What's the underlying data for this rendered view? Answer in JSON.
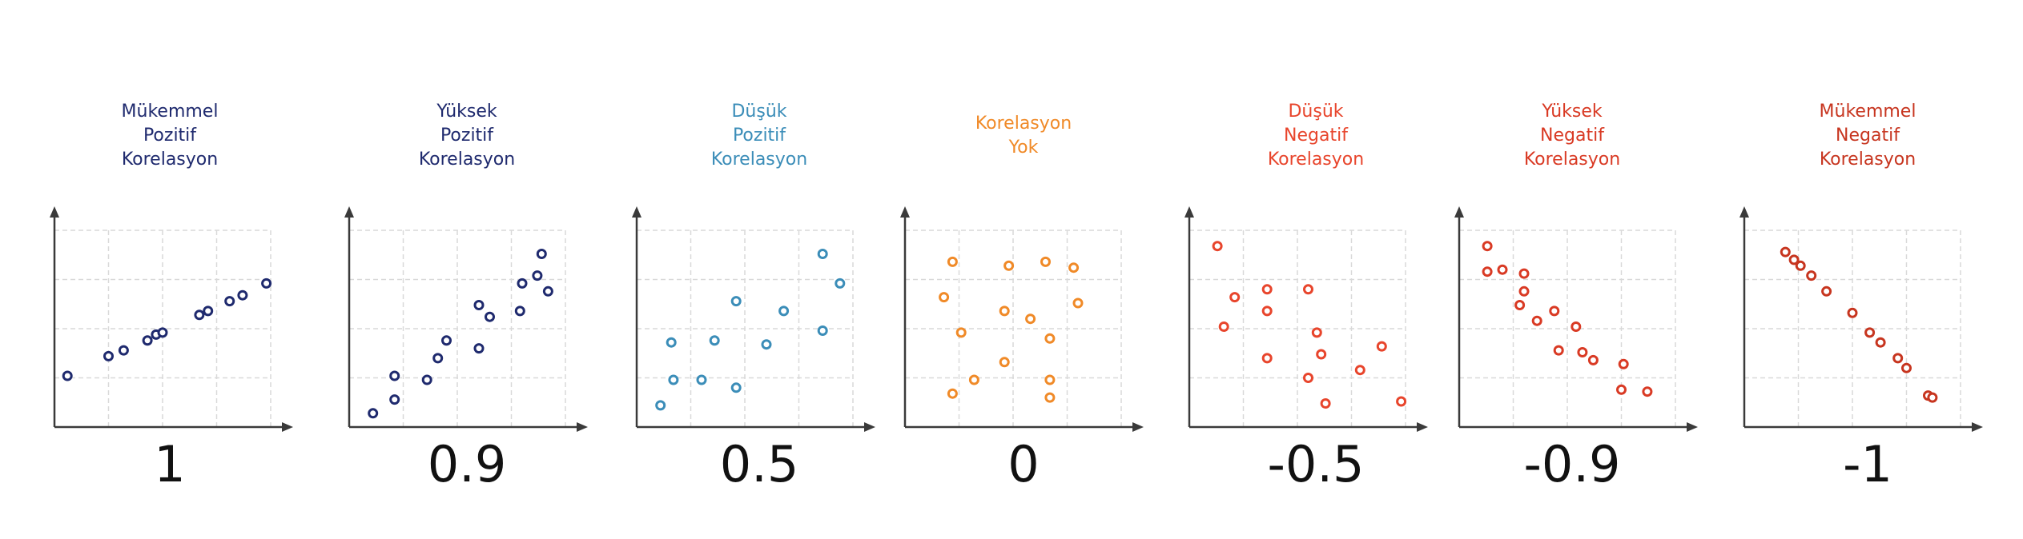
{
  "chart_data": [
    {
      "type": "scatter",
      "title_lines": [
        "Mükemmel",
        "Pozitif",
        "Korelasyon"
      ],
      "correlation_label": "1",
      "color": "#1f2a6e",
      "xlim": [
        0,
        10
      ],
      "ylim": [
        0,
        10
      ],
      "grid": true,
      "points": [
        [
          0.6,
          2.6
        ],
        [
          2.5,
          3.6
        ],
        [
          3.2,
          3.9
        ],
        [
          4.3,
          4.4
        ],
        [
          4.7,
          4.7
        ],
        [
          5.0,
          4.8
        ],
        [
          6.7,
          5.7
        ],
        [
          7.1,
          5.9
        ],
        [
          8.1,
          6.4
        ],
        [
          8.7,
          6.7
        ],
        [
          9.8,
          7.3
        ]
      ]
    },
    {
      "type": "scatter",
      "title_lines": [
        "Yüksek",
        "Pozitif",
        "Korelasyon"
      ],
      "correlation_label": "0.9",
      "color": "#1f2a6e",
      "xlim": [
        0,
        10
      ],
      "ylim": [
        0,
        10
      ],
      "grid": true,
      "points": [
        [
          1.1,
          0.7
        ],
        [
          2.1,
          1.4
        ],
        [
          2.1,
          2.6
        ],
        [
          3.6,
          2.4
        ],
        [
          4.1,
          3.5
        ],
        [
          4.5,
          4.4
        ],
        [
          6.0,
          4.0
        ],
        [
          6.0,
          6.2
        ],
        [
          6.5,
          5.6
        ],
        [
          7.9,
          5.9
        ],
        [
          8.0,
          7.3
        ],
        [
          8.7,
          7.7
        ],
        [
          8.9,
          8.8
        ],
        [
          9.2,
          6.9
        ]
      ]
    },
    {
      "type": "scatter",
      "title_lines": [
        "Düşük",
        "Pozitif",
        "Korelasyon"
      ],
      "correlation_label": "0.5",
      "color": "#3b8db8",
      "xlim": [
        0,
        10
      ],
      "ylim": [
        0,
        10
      ],
      "grid": true,
      "points": [
        [
          1.1,
          1.1
        ],
        [
          1.6,
          4.3
        ],
        [
          1.7,
          2.4
        ],
        [
          3.0,
          2.4
        ],
        [
          3.6,
          4.4
        ],
        [
          4.6,
          6.4
        ],
        [
          4.6,
          2.0
        ],
        [
          6.0,
          4.2
        ],
        [
          6.8,
          5.9
        ],
        [
          8.6,
          8.8
        ],
        [
          8.6,
          4.9
        ],
        [
          9.4,
          7.3
        ]
      ]
    },
    {
      "type": "scatter",
      "title_lines": [
        "Korelasyon",
        "Yok"
      ],
      "correlation_label": "0",
      "color": "#f08a28",
      "xlim": [
        0,
        10
      ],
      "ylim": [
        0,
        10
      ],
      "grid": true,
      "points": [
        [
          1.8,
          6.6
        ],
        [
          2.2,
          8.4
        ],
        [
          2.2,
          1.7
        ],
        [
          2.6,
          4.8
        ],
        [
          3.2,
          2.4
        ],
        [
          4.6,
          3.3
        ],
        [
          4.6,
          5.9
        ],
        [
          4.8,
          8.2
        ],
        [
          5.8,
          5.5
        ],
        [
          6.5,
          8.4
        ],
        [
          6.7,
          1.5
        ],
        [
          6.7,
          2.4
        ],
        [
          6.7,
          4.5
        ],
        [
          7.8,
          8.1
        ],
        [
          8.0,
          6.3
        ]
      ]
    },
    {
      "type": "scatter",
      "title_lines": [
        "Düşük",
        "Negatif",
        "Korelasyon"
      ],
      "correlation_label": "-0.5",
      "color": "#e8452c",
      "xlim": [
        0,
        10
      ],
      "ylim": [
        0,
        10
      ],
      "grid": true,
      "points": [
        [
          1.3,
          9.2
        ],
        [
          1.6,
          5.1
        ],
        [
          2.1,
          6.6
        ],
        [
          3.6,
          7.0
        ],
        [
          3.6,
          5.9
        ],
        [
          3.6,
          3.5
        ],
        [
          5.5,
          7.0
        ],
        [
          5.5,
          2.5
        ],
        [
          5.9,
          4.8
        ],
        [
          6.1,
          3.7
        ],
        [
          6.3,
          1.2
        ],
        [
          7.9,
          2.9
        ],
        [
          8.9,
          4.1
        ],
        [
          9.8,
          1.3
        ]
      ]
    },
    {
      "type": "scatter",
      "title_lines": [
        "Yüksek",
        "Negatif",
        "Korelasyon"
      ],
      "correlation_label": "-0.9",
      "color": "#d93a24",
      "xlim": [
        0,
        10
      ],
      "ylim": [
        0,
        10
      ],
      "grid": true,
      "points": [
        [
          1.3,
          9.2
        ],
        [
          1.3,
          7.9
        ],
        [
          2.0,
          8.0
        ],
        [
          2.8,
          6.2
        ],
        [
          3.0,
          7.8
        ],
        [
          3.0,
          6.9
        ],
        [
          3.6,
          5.4
        ],
        [
          4.4,
          5.9
        ],
        [
          4.6,
          3.9
        ],
        [
          5.4,
          5.1
        ],
        [
          5.7,
          3.8
        ],
        [
          6.2,
          3.4
        ],
        [
          7.5,
          1.9
        ],
        [
          7.6,
          3.2
        ],
        [
          8.7,
          1.8
        ]
      ]
    },
    {
      "type": "scatter",
      "title_lines": [
        "Mükemmel",
        "Negatif",
        "Korelasyon"
      ],
      "correlation_label": "-1",
      "color": "#c7351f",
      "xlim": [
        0,
        10
      ],
      "ylim": [
        0,
        10
      ],
      "grid": true,
      "points": [
        [
          1.9,
          8.9
        ],
        [
          2.3,
          8.5
        ],
        [
          2.6,
          8.2
        ],
        [
          3.1,
          7.7
        ],
        [
          3.8,
          6.9
        ],
        [
          5.0,
          5.8
        ],
        [
          5.8,
          4.8
        ],
        [
          6.3,
          4.3
        ],
        [
          7.1,
          3.5
        ],
        [
          7.5,
          3.0
        ],
        [
          8.5,
          1.6
        ],
        [
          8.7,
          1.5
        ]
      ]
    }
  ]
}
